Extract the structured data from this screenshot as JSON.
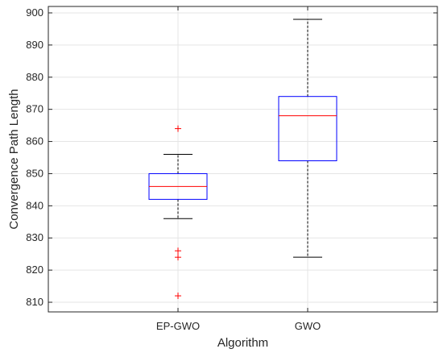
{
  "chart_data": {
    "type": "box",
    "xlabel": "Algorithm",
    "ylabel": "Convergence Path Length",
    "ylim": [
      807,
      902
    ],
    "yticks": [
      810,
      820,
      830,
      840,
      850,
      860,
      870,
      880,
      890,
      900
    ],
    "grid": true,
    "categories": [
      "EP-GWO",
      "GWO"
    ],
    "boxes": [
      {
        "category": "EP-GWO",
        "whisker_low": 836,
        "q1": 842,
        "median": 846,
        "q3": 850,
        "whisker_high": 856,
        "outliers": [
          864,
          826,
          824,
          812
        ]
      },
      {
        "category": "GWO",
        "whisker_low": 824,
        "q1": 854,
        "median": 868,
        "q3": 874,
        "whisker_high": 898,
        "outliers": []
      }
    ],
    "colors": {
      "box": "#0000ff",
      "median": "#ff0000",
      "whisker": "#000000",
      "outlier": "#ff0000",
      "grid": "#e5e5e5",
      "axis": "#262626"
    }
  }
}
